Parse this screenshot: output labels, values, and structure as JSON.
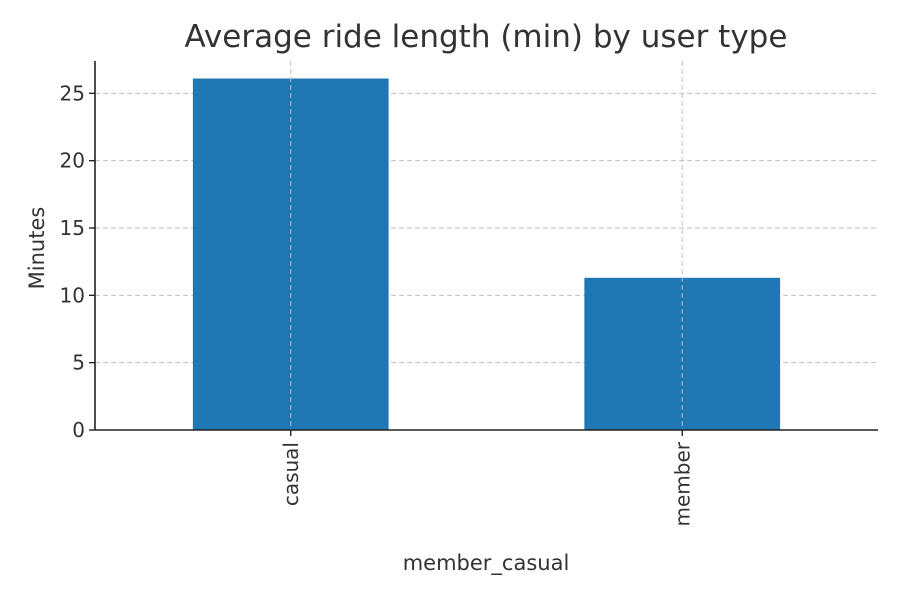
{
  "chart_data": {
    "type": "bar",
    "title": "Average ride length (min) by user type",
    "xlabel": "member_casual",
    "ylabel": "Minutes",
    "categories": [
      "casual",
      "member"
    ],
    "values": [
      26.1,
      11.3
    ],
    "ylim": [
      0,
      27.4
    ],
    "yticks": [
      0,
      5,
      10,
      15,
      20,
      25
    ],
    "grid": true,
    "bar_color": "#1f77b4",
    "legend": "none"
  }
}
